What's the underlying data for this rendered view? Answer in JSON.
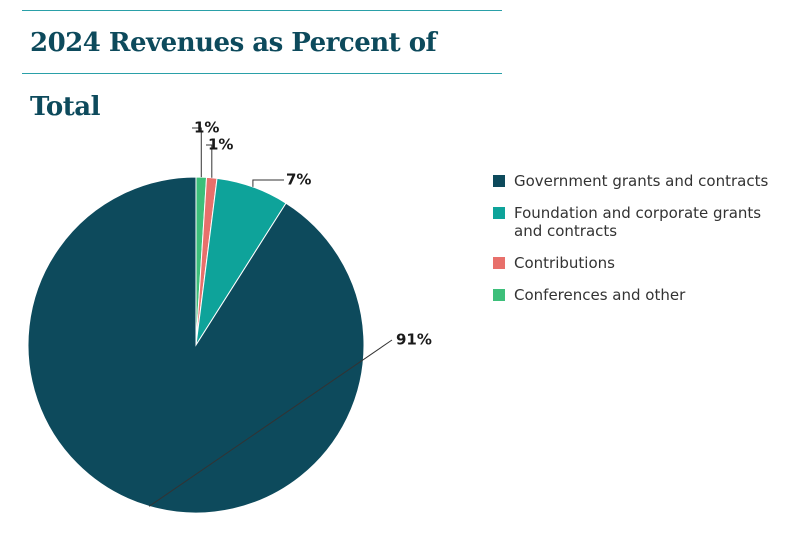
{
  "chart_data": {
    "type": "pie",
    "title": "2024 Revenues as Percent of Total",
    "categories": [
      "Government grants and contracts",
      "Foundation and corporate grants and contracts",
      "Contributions",
      "Conferences and other"
    ],
    "values": [
      91,
      7,
      1,
      1
    ],
    "value_labels": [
      "91%",
      "7%",
      "1%",
      "1%"
    ],
    "colors": [
      "#0d4a5c",
      "#0ea39a",
      "#e8706b",
      "#3dbf7a"
    ],
    "legend": "right"
  }
}
